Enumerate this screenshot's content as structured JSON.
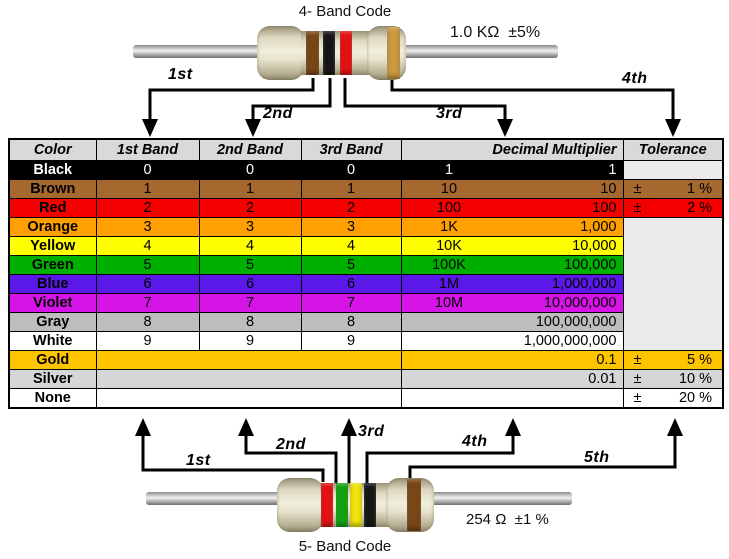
{
  "four_band": {
    "title": "4- Band Code",
    "value_label": "1.0 KΩ  ±5%",
    "pointer_labels": [
      "1st",
      "2nd",
      "3rd",
      "4th"
    ],
    "bands": [
      "brown",
      "black",
      "red",
      "gold"
    ]
  },
  "five_band": {
    "title": "5- Band Code",
    "value_label": "254 Ω  ±1 %",
    "pointer_labels": [
      "1st",
      "2nd",
      "3rd",
      "4th",
      "5th"
    ],
    "bands": [
      "red",
      "green",
      "yellow",
      "black",
      "brown"
    ]
  },
  "table": {
    "headers": [
      "Color",
      "1st Band",
      "2nd Band",
      "3rd Band",
      "Decimal Multiplier",
      "Tolerance"
    ],
    "header_bg": "#D9D9D9",
    "empty_cell_bg": "#EBEBEB",
    "merged_tolerance_rowspan": 7,
    "rows": [
      {
        "name": "Black",
        "bg": "#000000",
        "fg": "#FFFFFF",
        "bands": [
          "0",
          "0",
          "0"
        ],
        "mult_short": "1",
        "mult_full": "1",
        "tol_type": "empty"
      },
      {
        "name": "Brown",
        "bg": "#A5692F",
        "fg": "#000000",
        "bands": [
          "1",
          "1",
          "1"
        ],
        "mult_short": "10",
        "mult_full": "10",
        "tol_type": "value",
        "tol_sign": "±",
        "tol_value": "1 %"
      },
      {
        "name": "Red",
        "bg": "#F40000",
        "fg": "#000000",
        "bands": [
          "2",
          "2",
          "2"
        ],
        "mult_short": "100",
        "mult_full": "100",
        "tol_type": "value",
        "tol_sign": "±",
        "tol_value": "2 %"
      },
      {
        "name": "Orange",
        "bg": "#FFA000",
        "fg": "#000000",
        "bands": [
          "3",
          "3",
          "3"
        ],
        "mult_short": "1K",
        "mult_full": "1,000",
        "tol_type": "merged_start"
      },
      {
        "name": "Yellow",
        "bg": "#FFFF00",
        "fg": "#000000",
        "bands": [
          "4",
          "4",
          "4"
        ],
        "mult_short": "10K",
        "mult_full": "10,000",
        "tol_type": "merged"
      },
      {
        "name": "Green",
        "bg": "#00B000",
        "fg": "#000000",
        "bands": [
          "5",
          "5",
          "5"
        ],
        "mult_short": "100K",
        "mult_full": "100,000",
        "tol_type": "merged"
      },
      {
        "name": "Blue",
        "bg": "#5A19E6",
        "fg": "#000000",
        "bands": [
          "6",
          "6",
          "6"
        ],
        "mult_short": "1M",
        "mult_full": "1,000,000",
        "tol_type": "merged"
      },
      {
        "name": "Violet",
        "bg": "#D714E8",
        "fg": "#000000",
        "bands": [
          "7",
          "7",
          "7"
        ],
        "mult_short": "10M",
        "mult_full": "10,000,000",
        "tol_type": "merged"
      },
      {
        "name": "Gray",
        "bg": "#BDBDBD",
        "fg": "#000000",
        "bands": [
          "8",
          "8",
          "8"
        ],
        "mult_short": "",
        "mult_full": "100,000,000",
        "tol_type": "merged"
      },
      {
        "name": "White",
        "bg": "#FFFFFF",
        "fg": "#000000",
        "bands": [
          "9",
          "9",
          "9"
        ],
        "mult_short": "",
        "mult_full": "1,000,000,000",
        "tol_type": "merged"
      },
      {
        "name": "Gold",
        "bg": "#FFC400",
        "fg": "#000000",
        "bands_merged": true,
        "mult_short": "",
        "mult_full": "0.1",
        "tol_type": "value",
        "tol_sign": "±",
        "tol_value": "5 %"
      },
      {
        "name": "Silver",
        "bg": "#D6D6D6",
        "fg": "#000000",
        "bands_merged": true,
        "mult_short": "",
        "mult_full": "0.01",
        "tol_type": "value",
        "tol_sign": "±",
        "tol_value": "10 %"
      },
      {
        "name": "None",
        "bg": "#FFFFFF",
        "fg": "#000000",
        "bands_merged": true,
        "mult_short": "",
        "mult_full": "",
        "tol_type": "value",
        "tol_sign": "±",
        "tol_value": "20 %"
      }
    ]
  },
  "band_colors": {
    "brown": "#7B4617",
    "black": "#161616",
    "red": "#E51212",
    "gold": "#CC9A40",
    "green": "#12A412",
    "yellow": "#F0E40A"
  }
}
